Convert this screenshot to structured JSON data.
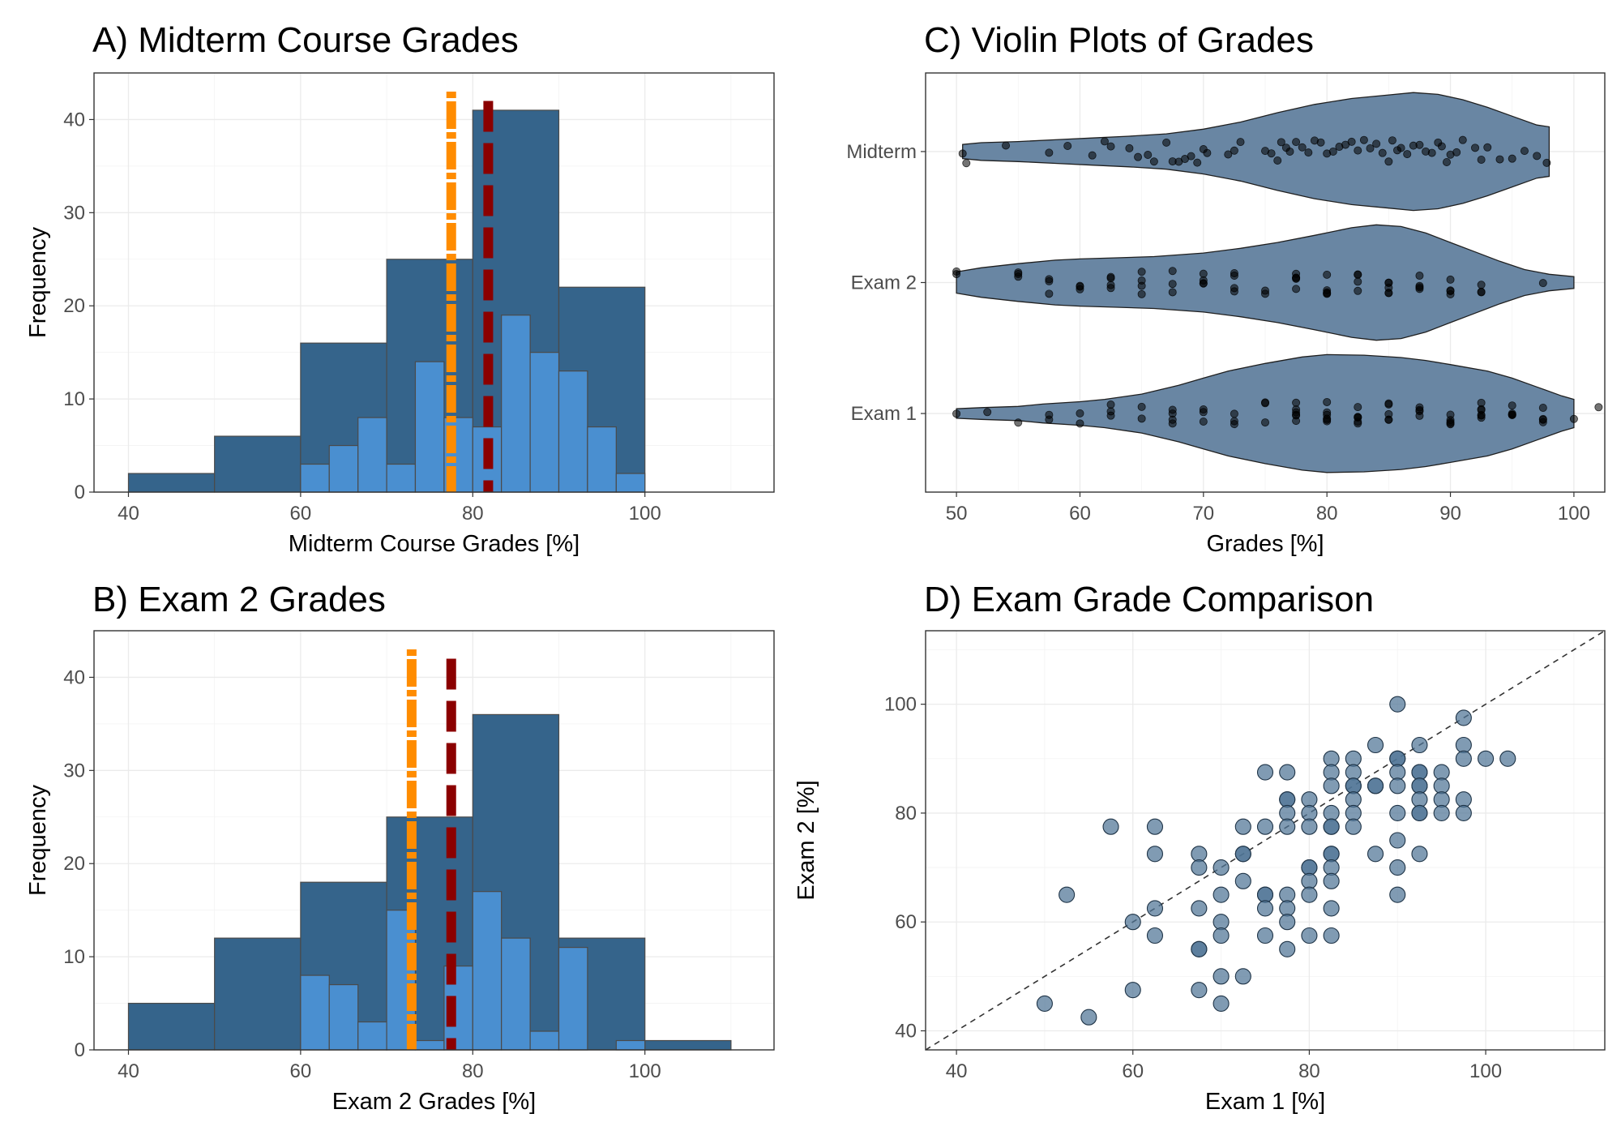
{
  "figure": {
    "colors": {
      "dark_bar": "#35648b",
      "light_bar": "#4a8fd0",
      "bar_border": "#4a4a4a",
      "mean_line": "#ff8c00",
      "median_line": "#8b0000",
      "violin": "#6986a3",
      "scatter": "#4f7496"
    }
  },
  "chart_data": [
    {
      "id": "A",
      "type": "bar",
      "title": "A) Midterm Course Grades",
      "xlabel": "Midterm Course Grades [%]",
      "ylabel": "Frequency",
      "xlim": [
        36,
        115
      ],
      "ylim": [
        0,
        45
      ],
      "xticks": [
        40,
        60,
        80,
        100
      ],
      "yticks": [
        0,
        10,
        20,
        30,
        40
      ],
      "grid": true,
      "series": [
        {
          "bins": [
            [
              40,
              50,
              2
            ],
            [
              50,
              60,
              6
            ],
            [
              60,
              70,
              16
            ],
            [
              70,
              80,
              25
            ],
            [
              80,
              90,
              41
            ],
            [
              90,
              100,
              22
            ]
          ]
        },
        {
          "bins": [
            [
              60,
              63.33,
              3
            ],
            [
              63.33,
              66.67,
              5
            ],
            [
              66.67,
              70,
              8
            ],
            [
              70,
              73.33,
              3
            ],
            [
              73.33,
              76.67,
              14
            ],
            [
              76.67,
              80,
              8
            ],
            [
              80,
              83.33,
              7
            ],
            [
              83.33,
              86.67,
              19
            ],
            [
              86.67,
              90,
              15
            ],
            [
              90,
              93.33,
              13
            ],
            [
              93.33,
              96.67,
              7
            ],
            [
              96.67,
              100,
              2
            ]
          ]
        }
      ],
      "vlines": [
        {
          "x": 77.5,
          "style": "dotdash",
          "color": "#ff8c00",
          "y_top": 43
        },
        {
          "x": 81.8,
          "style": "longdash",
          "color": "#8b0000",
          "y_top": 42
        }
      ]
    },
    {
      "id": "B",
      "type": "bar",
      "title": "B) Exam 2 Grades",
      "xlabel": "Exam 2 Grades [%]",
      "ylabel": "Frequency",
      "xlim": [
        36,
        115
      ],
      "ylim": [
        0,
        45
      ],
      "xticks": [
        40,
        60,
        80,
        100
      ],
      "yticks": [
        0,
        10,
        20,
        30,
        40
      ],
      "grid": true,
      "series": [
        {
          "bins": [
            [
              40,
              50,
              5
            ],
            [
              50,
              60,
              12
            ],
            [
              60,
              70,
              18
            ],
            [
              70,
              80,
              25
            ],
            [
              80,
              90,
              36
            ],
            [
              90,
              100,
              12
            ],
            [
              100,
              110,
              1
            ]
          ]
        },
        {
          "bins": [
            [
              60,
              63.33,
              8
            ],
            [
              63.33,
              66.67,
              7
            ],
            [
              66.67,
              70,
              3
            ],
            [
              70,
              73.33,
              15
            ],
            [
              73.33,
              76.67,
              1
            ],
            [
              76.67,
              80,
              9
            ],
            [
              80,
              83.33,
              17
            ],
            [
              83.33,
              86.67,
              12
            ],
            [
              86.67,
              90,
              2
            ],
            [
              90,
              93.33,
              11
            ],
            [
              96.67,
              100,
              1
            ]
          ]
        }
      ],
      "vlines": [
        {
          "x": 72.9,
          "style": "dotdash",
          "color": "#ff8c00",
          "y_top": 43
        },
        {
          "x": 77.5,
          "style": "longdash",
          "color": "#8b0000",
          "y_top": 42
        }
      ]
    },
    {
      "id": "C",
      "type": "violin",
      "title": "C) Violin Plots of Grades",
      "xlabel": "Grades [%]",
      "ylabel": "",
      "xlim": [
        47.5,
        102.5
      ],
      "xticks": [
        50,
        60,
        70,
        80,
        90,
        100
      ],
      "categories": [
        "Exam 1",
        "Exam 2",
        "Midterm"
      ],
      "grid": true,
      "violins": [
        {
          "category": "Exam 1",
          "range": [
            50,
            100
          ],
          "profile": [
            [
              50,
              0.08
            ],
            [
              52,
              0.1
            ],
            [
              55,
              0.12
            ],
            [
              57,
              0.16
            ],
            [
              60,
              0.2
            ],
            [
              62,
              0.24
            ],
            [
              65,
              0.33
            ],
            [
              68,
              0.48
            ],
            [
              70,
              0.6
            ],
            [
              72,
              0.72
            ],
            [
              75,
              0.85
            ],
            [
              78,
              0.96
            ],
            [
              80,
              1.0
            ],
            [
              83,
              0.99
            ],
            [
              86,
              0.95
            ],
            [
              88,
              0.9
            ],
            [
              90,
              0.83
            ],
            [
              93,
              0.72
            ],
            [
              95,
              0.6
            ],
            [
              97,
              0.45
            ],
            [
              99,
              0.3
            ],
            [
              100,
              0.24
            ]
          ],
          "points": [
            50,
            52.5,
            55,
            57.5,
            57.5,
            60,
            60,
            62.5,
            62.5,
            62.5,
            65,
            65,
            67.5,
            67.5,
            67.5,
            67.5,
            70,
            70,
            70,
            72.5,
            72.5,
            72.5,
            75,
            75,
            75,
            77.5,
            77.5,
            77.5,
            77.5,
            77.5,
            77.5,
            80,
            80,
            80,
            80,
            80,
            80,
            82.5,
            82.5,
            82.5,
            82.5,
            82.5,
            82.5,
            85,
            85,
            85,
            85,
            85,
            87.5,
            87.5,
            87.5,
            87.5,
            90,
            90,
            90,
            90,
            90,
            92.5,
            92.5,
            92.5,
            92.5,
            92.5,
            92.5,
            95,
            95,
            95,
            95,
            95,
            97.5,
            97.5,
            97.5,
            97.5,
            100,
            102.5
          ]
        },
        {
          "category": "Exam 2",
          "range": [
            50,
            100
          ],
          "profile": [
            [
              50,
              0.18
            ],
            [
              52,
              0.25
            ],
            [
              55,
              0.32
            ],
            [
              58,
              0.38
            ],
            [
              60,
              0.4
            ],
            [
              63,
              0.42
            ],
            [
              66,
              0.44
            ],
            [
              70,
              0.5
            ],
            [
              73,
              0.58
            ],
            [
              76,
              0.68
            ],
            [
              79,
              0.8
            ],
            [
              82,
              0.93
            ],
            [
              84,
              0.98
            ],
            [
              86,
              0.95
            ],
            [
              88,
              0.84
            ],
            [
              90,
              0.68
            ],
            [
              92,
              0.52
            ],
            [
              94,
              0.36
            ],
            [
              96,
              0.22
            ],
            [
              98,
              0.14
            ],
            [
              100,
              0.1
            ]
          ],
          "points": [
            50,
            50,
            55,
            55,
            55,
            57.5,
            57.5,
            57.5,
            60,
            60,
            60,
            62.5,
            62.5,
            62.5,
            62.5,
            65,
            65,
            65,
            65,
            67.5,
            67.5,
            67.5,
            70,
            70,
            70,
            70,
            72.5,
            72.5,
            72.5,
            72.5,
            75,
            75,
            77.5,
            77.5,
            77.5,
            77.5,
            77.5,
            80,
            80,
            80,
            80,
            80,
            82.5,
            82.5,
            82.5,
            82.5,
            85,
            85,
            85,
            85,
            85,
            87.5,
            87.5,
            87.5,
            87.5,
            90,
            90,
            90,
            90,
            92.5,
            92.5,
            92.5,
            97.5
          ]
        },
        {
          "category": "Midterm",
          "range": [
            50.5,
            98
          ],
          "profile": [
            [
              50.5,
              0.12
            ],
            [
              52,
              0.15
            ],
            [
              55,
              0.17
            ],
            [
              58,
              0.2
            ],
            [
              61,
              0.23
            ],
            [
              64,
              0.26
            ],
            [
              67,
              0.3
            ],
            [
              70,
              0.38
            ],
            [
              73,
              0.5
            ],
            [
              76,
              0.66
            ],
            [
              79,
              0.8
            ],
            [
              82,
              0.9
            ],
            [
              85,
              0.96
            ],
            [
              87,
              1.0
            ],
            [
              89,
              0.97
            ],
            [
              91,
              0.88
            ],
            [
              93,
              0.75
            ],
            [
              95,
              0.6
            ],
            [
              97,
              0.45
            ],
            [
              98,
              0.42
            ]
          ],
          "points": [
            50.5,
            50.8,
            54,
            57.5,
            59,
            61,
            62,
            62.5,
            64,
            64.7,
            65.5,
            66,
            67,
            67.5,
            68,
            68.5,
            69,
            69.5,
            70,
            70.3,
            72,
            72.5,
            73,
            75,
            75.5,
            76,
            76.3,
            76.7,
            77,
            77.5,
            78,
            78.5,
            79,
            79.5,
            80,
            80.5,
            81,
            81.5,
            82,
            82.5,
            83,
            83.5,
            84,
            84.5,
            85,
            85.3,
            85.7,
            86,
            86.5,
            87,
            87.5,
            88,
            88.5,
            89,
            89.3,
            89.7,
            90,
            90.5,
            91,
            92,
            92.5,
            93,
            94,
            95,
            96,
            97,
            97.8
          ]
        }
      ]
    },
    {
      "id": "D",
      "type": "scatter",
      "title": "D) Exam Grade Comparison",
      "xlabel": "Exam 1 [%]",
      "ylabel": "Exam 2 [%]",
      "xlim": [
        36.5,
        113.5
      ],
      "ylim": [
        36.5,
        113.5
      ],
      "xticks": [
        40,
        60,
        80,
        100
      ],
      "yticks": [
        40,
        60,
        80,
        100
      ],
      "grid": true,
      "reference_line": "y = x",
      "points": [
        [
          50,
          45
        ],
        [
          52.5,
          65
        ],
        [
          55,
          42.5
        ],
        [
          57.5,
          77.5
        ],
        [
          60,
          60
        ],
        [
          60,
          47.5
        ],
        [
          62.5,
          77.5
        ],
        [
          62.5,
          72.5
        ],
        [
          62.5,
          62.5
        ],
        [
          62.5,
          57.5
        ],
        [
          67.5,
          72.5
        ],
        [
          67.5,
          70
        ],
        [
          67.5,
          62.5
        ],
        [
          67.5,
          55
        ],
        [
          67.5,
          55
        ],
        [
          67.5,
          47.5
        ],
        [
          70,
          70
        ],
        [
          70,
          65
        ],
        [
          70,
          60
        ],
        [
          70,
          57.5
        ],
        [
          70,
          50
        ],
        [
          70,
          45
        ],
        [
          72.5,
          77.5
        ],
        [
          72.5,
          72.5
        ],
        [
          72.5,
          72.5
        ],
        [
          72.5,
          67.5
        ],
        [
          72.5,
          50
        ],
        [
          75,
          87.5
        ],
        [
          75,
          77.5
        ],
        [
          75,
          65
        ],
        [
          75,
          65
        ],
        [
          75,
          62.5
        ],
        [
          75,
          57.5
        ],
        [
          77.5,
          87.5
        ],
        [
          77.5,
          82.5
        ],
        [
          77.5,
          82.5
        ],
        [
          77.5,
          80
        ],
        [
          77.5,
          77.5
        ],
        [
          77.5,
          65
        ],
        [
          77.5,
          62.5
        ],
        [
          77.5,
          60
        ],
        [
          77.5,
          55
        ],
        [
          80,
          82.5
        ],
        [
          80,
          80
        ],
        [
          80,
          77.5
        ],
        [
          80,
          70
        ],
        [
          80,
          70
        ],
        [
          80,
          67.5
        ],
        [
          80,
          65
        ],
        [
          80,
          57.5
        ],
        [
          82.5,
          90
        ],
        [
          82.5,
          87.5
        ],
        [
          82.5,
          85
        ],
        [
          82.5,
          80
        ],
        [
          82.5,
          77.5
        ],
        [
          82.5,
          77.5
        ],
        [
          82.5,
          72.5
        ],
        [
          82.5,
          72.5
        ],
        [
          82.5,
          70
        ],
        [
          82.5,
          67.5
        ],
        [
          82.5,
          62.5
        ],
        [
          82.5,
          57.5
        ],
        [
          85,
          90
        ],
        [
          85,
          87.5
        ],
        [
          85,
          85
        ],
        [
          85,
          85
        ],
        [
          85,
          82.5
        ],
        [
          85,
          80
        ],
        [
          85,
          77.5
        ],
        [
          87.5,
          92.5
        ],
        [
          87.5,
          85
        ],
        [
          87.5,
          85
        ],
        [
          87.5,
          72.5
        ],
        [
          90,
          100
        ],
        [
          90,
          90
        ],
        [
          90,
          90
        ],
        [
          90,
          87.5
        ],
        [
          90,
          85
        ],
        [
          90,
          80
        ],
        [
          90,
          75
        ],
        [
          90,
          70
        ],
        [
          90,
          65
        ],
        [
          92.5,
          92.5
        ],
        [
          92.5,
          87.5
        ],
        [
          92.5,
          87.5
        ],
        [
          92.5,
          85
        ],
        [
          92.5,
          85
        ],
        [
          92.5,
          82.5
        ],
        [
          92.5,
          80
        ],
        [
          92.5,
          80
        ],
        [
          92.5,
          72.5
        ],
        [
          95,
          87.5
        ],
        [
          95,
          85
        ],
        [
          95,
          82.5
        ],
        [
          95,
          80
        ],
        [
          97.5,
          97.5
        ],
        [
          97.5,
          92.5
        ],
        [
          97.5,
          90
        ],
        [
          97.5,
          82.5
        ],
        [
          97.5,
          80
        ],
        [
          100,
          90
        ],
        [
          102.5,
          90
        ]
      ]
    }
  ]
}
